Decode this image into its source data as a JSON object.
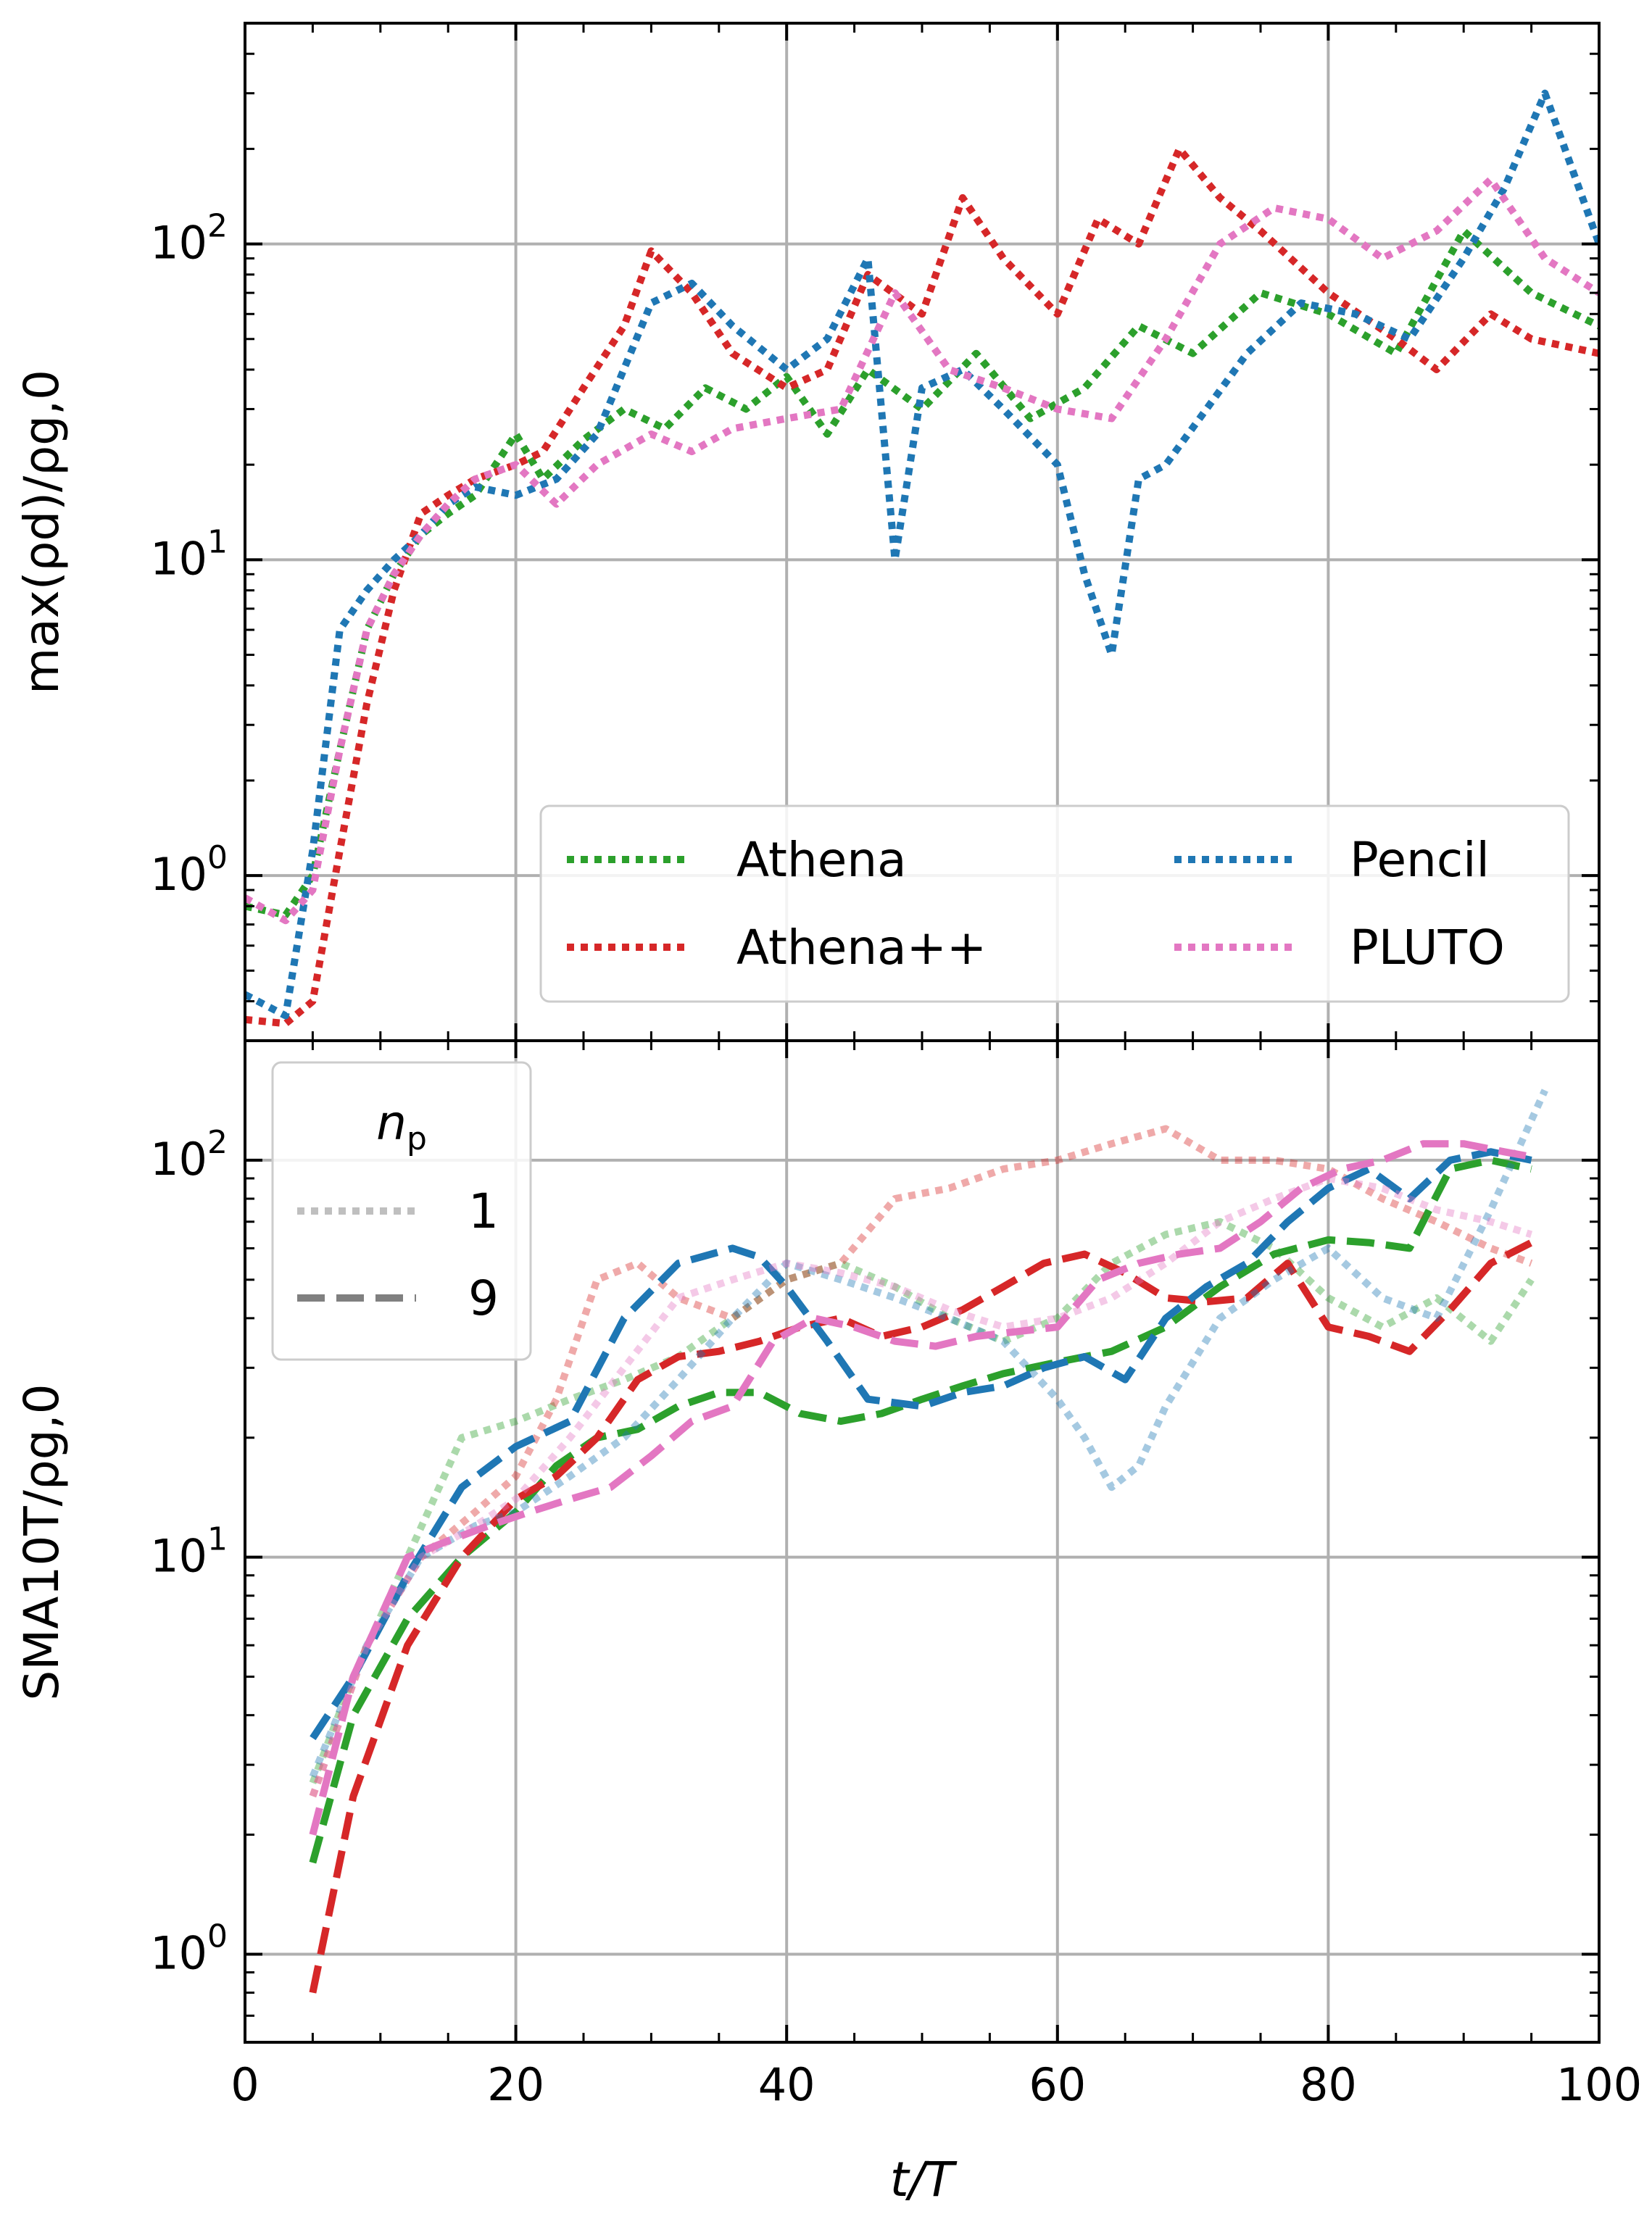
{
  "chart_data": [
    {
      "type": "line",
      "panel": "top",
      "xlabel": "t/T",
      "ylabel": "max(ρd)/ρg,0",
      "xlim": [
        0,
        100
      ],
      "ylim": [
        0.3,
        500
      ],
      "yscale": "log",
      "grid": true,
      "xticks": [
        0,
        20,
        40,
        60,
        80,
        100
      ],
      "yticks": [
        {
          "value": 1,
          "mantissa": "10",
          "exp": "0"
        },
        {
          "value": 10,
          "mantissa": "10",
          "exp": "1"
        },
        {
          "value": 100,
          "mantissa": "10",
          "exp": "2"
        }
      ],
      "legend": {
        "placement": "lower-right",
        "columns": 2
      },
      "series": [
        {
          "name": "Athena",
          "color": "#2ca02c",
          "style": "dotted",
          "x": [
            0,
            3,
            5,
            7,
            9,
            11,
            13,
            15,
            17,
            20,
            22,
            25,
            28,
            31,
            34,
            37,
            40,
            43,
            46,
            50,
            54,
            58,
            62,
            66,
            70,
            75,
            80,
            85,
            90,
            95,
            100
          ],
          "y": [
            0.8,
            0.75,
            1.0,
            2.5,
            6,
            9,
            12,
            14,
            16,
            25,
            18,
            24,
            30,
            26,
            35,
            30,
            38,
            25,
            40,
            30,
            45,
            28,
            35,
            55,
            45,
            70,
            60,
            45,
            110,
            70,
            55
          ]
        },
        {
          "name": "Athena++",
          "color": "#d62728",
          "style": "dotted",
          "x": [
            0,
            3,
            5,
            7,
            9,
            11,
            13,
            15,
            17,
            20,
            22,
            25,
            28,
            30,
            33,
            36,
            40,
            43,
            46,
            50,
            53,
            56,
            60,
            63,
            66,
            69,
            72,
            75,
            80,
            85,
            88,
            92,
            95,
            100
          ],
          "y": [
            0.35,
            0.34,
            0.4,
            1.2,
            3.5,
            8,
            14,
            16,
            18,
            20,
            22,
            35,
            55,
            95,
            70,
            45,
            35,
            40,
            80,
            60,
            140,
            90,
            60,
            120,
            100,
            200,
            140,
            110,
            70,
            50,
            40,
            60,
            50,
            45
          ]
        },
        {
          "name": "Pencil",
          "color": "#1f77b4",
          "style": "dotted",
          "x": [
            0,
            3,
            5,
            7,
            9,
            11,
            13,
            15,
            17,
            20,
            23,
            26,
            30,
            33,
            36,
            40,
            43,
            46,
            48,
            50,
            53,
            56,
            60,
            62,
            64,
            66,
            68,
            71,
            74,
            78,
            82,
            86,
            90,
            93,
            96,
            100
          ],
          "y": [
            0.42,
            0.36,
            1.2,
            6,
            8,
            10,
            12,
            15,
            17,
            16,
            18,
            25,
            65,
            75,
            55,
            40,
            50,
            90,
            10,
            35,
            40,
            30,
            20,
            9,
            5,
            18,
            20,
            30,
            45,
            65,
            60,
            50,
            90,
            150,
            300,
            100
          ]
        },
        {
          "name": "PLUTO",
          "color": "#e377c2",
          "style": "dotted",
          "x": [
            0,
            3,
            5,
            7,
            9,
            11,
            13,
            15,
            17,
            20,
            23,
            26,
            30,
            33,
            36,
            40,
            44,
            48,
            52,
            56,
            60,
            64,
            68,
            72,
            76,
            80,
            84,
            88,
            92,
            96,
            100
          ],
          "y": [
            0.85,
            0.72,
            0.9,
            2.5,
            6,
            9,
            12,
            15,
            18,
            20,
            15,
            20,
            25,
            22,
            26,
            28,
            30,
            70,
            40,
            35,
            30,
            28,
            50,
            100,
            130,
            120,
            90,
            110,
            160,
            90,
            70
          ]
        }
      ]
    },
    {
      "type": "line",
      "panel": "bottom",
      "xlabel": "t/T",
      "ylabel": "SMA10T/ρg,0",
      "xlim": [
        0,
        100
      ],
      "ylim": [
        0.6,
        200
      ],
      "yscale": "log",
      "grid": true,
      "xticks": [
        0,
        20,
        40,
        60,
        80,
        100
      ],
      "yticks": [
        {
          "value": 1,
          "mantissa": "10",
          "exp": "0"
        },
        {
          "value": 10,
          "mantissa": "10",
          "exp": "1"
        },
        {
          "value": 100,
          "mantissa": "10",
          "exp": "2"
        }
      ],
      "legend": {
        "title_base": "n",
        "title_sub": "p",
        "placement": "upper-left",
        "entries": [
          {
            "label": "1",
            "style": "dotted"
          },
          {
            "label": "9",
            "style": "dashed"
          }
        ]
      },
      "series": [
        {
          "name": "Athena",
          "np": "1",
          "color": "#2ca02c",
          "style": "dotted",
          "x": [
            5,
            8,
            12,
            16,
            20,
            24,
            28,
            32,
            36,
            40,
            44,
            48,
            52,
            56,
            60,
            64,
            68,
            72,
            76,
            80,
            84,
            88,
            92,
            95
          ],
          "y": [
            2.7,
            5,
            10,
            20,
            22,
            25,
            28,
            32,
            40,
            50,
            55,
            48,
            40,
            35,
            40,
            55,
            65,
            70,
            60,
            45,
            38,
            45,
            35,
            50
          ]
        },
        {
          "name": "Athena",
          "np": "9",
          "color": "#2ca02c",
          "style": "dashed",
          "x": [
            5,
            8,
            12,
            16,
            20,
            23,
            26,
            29,
            32,
            35,
            38,
            41,
            44,
            47,
            50,
            53,
            56,
            60,
            64,
            68,
            72,
            76,
            80,
            83,
            86,
            89,
            92,
            95
          ],
          "y": [
            1.7,
            4,
            7,
            10,
            13,
            17,
            20,
            21,
            24,
            26,
            26,
            23,
            22,
            23,
            25,
            27,
            29,
            31,
            33,
            38,
            48,
            58,
            63,
            62,
            60,
            95,
            100,
            95
          ]
        },
        {
          "name": "Athena++",
          "np": "1",
          "color": "#d62728",
          "style": "dotted",
          "x": [
            5,
            9,
            13,
            17,
            20,
            23,
            26,
            29,
            32,
            36,
            40,
            44,
            48,
            52,
            56,
            60,
            64,
            68,
            72,
            76,
            80,
            84,
            88,
            92,
            95
          ],
          "y": [
            2.5,
            6,
            10,
            13,
            16,
            25,
            50,
            55,
            45,
            40,
            50,
            55,
            80,
            85,
            95,
            100,
            110,
            120,
            100,
            100,
            95,
            80,
            70,
            60,
            55
          ]
        },
        {
          "name": "Athena++",
          "np": "9",
          "color": "#d62728",
          "style": "dashed",
          "x": [
            5,
            8,
            12,
            16,
            20,
            23,
            26,
            29,
            32,
            35,
            38,
            41,
            44,
            47,
            50,
            53,
            56,
            59,
            62,
            65,
            68,
            71,
            74,
            77,
            80,
            83,
            86,
            89,
            92,
            95
          ],
          "y": [
            0.8,
            2.5,
            6,
            10,
            14,
            16,
            20,
            28,
            32,
            33,
            35,
            38,
            40,
            36,
            38,
            42,
            48,
            55,
            58,
            52,
            45,
            44,
            45,
            55,
            38,
            36,
            33,
            42,
            55,
            62
          ]
        },
        {
          "name": "Pencil",
          "np": "1",
          "color": "#1f77b4",
          "style": "dotted",
          "x": [
            5,
            9,
            13,
            17,
            20,
            24,
            28,
            32,
            36,
            40,
            44,
            48,
            52,
            56,
            60,
            62,
            64,
            66,
            68,
            72,
            76,
            80,
            84,
            88,
            92,
            96
          ],
          "y": [
            2.8,
            6,
            10,
            12,
            13,
            16,
            20,
            28,
            40,
            55,
            50,
            45,
            40,
            35,
            25,
            20,
            15,
            17,
            24,
            40,
            50,
            60,
            45,
            40,
            75,
            150
          ]
        },
        {
          "name": "Pencil",
          "np": "9",
          "color": "#1f77b4",
          "style": "dashed",
          "x": [
            5,
            8,
            12,
            16,
            20,
            24,
            28,
            32,
            36,
            38,
            40,
            43,
            46,
            50,
            53,
            56,
            59,
            62,
            65,
            68,
            71,
            74,
            77,
            80,
            83,
            86,
            89,
            92,
            95
          ],
          "y": [
            3.5,
            5,
            9,
            15,
            19,
            22,
            40,
            55,
            60,
            57,
            48,
            35,
            25,
            24,
            26,
            27,
            30,
            32,
            28,
            40,
            48,
            55,
            70,
            85,
            95,
            80,
            100,
            105,
            100
          ]
        },
        {
          "name": "PLUTO",
          "np": "1",
          "color": "#e377c2",
          "style": "dotted",
          "x": [
            5,
            9,
            13,
            17,
            20,
            24,
            28,
            32,
            36,
            40,
            44,
            48,
            52,
            56,
            60,
            64,
            68,
            72,
            76,
            80,
            84,
            88,
            92,
            95
          ],
          "y": [
            2.5,
            6,
            10,
            12,
            14,
            20,
            30,
            45,
            50,
            55,
            52,
            48,
            42,
            38,
            40,
            45,
            55,
            70,
            80,
            90,
            85,
            75,
            70,
            65
          ]
        },
        {
          "name": "PLUTO",
          "np": "9",
          "color": "#e377c2",
          "style": "dashed",
          "x": [
            5,
            8,
            12,
            15,
            18,
            21,
            24,
            27,
            30,
            33,
            36,
            39,
            42,
            45,
            48,
            51,
            54,
            57,
            60,
            63,
            66,
            69,
            72,
            75,
            78,
            81,
            84,
            87,
            90,
            93,
            95
          ],
          "y": [
            2,
            5,
            10,
            11,
            12,
            13,
            14,
            15,
            18,
            22,
            24,
            35,
            40,
            38,
            35,
            34,
            36,
            37,
            38,
            50,
            55,
            58,
            60,
            70,
            85,
            95,
            100,
            110,
            110,
            105,
            102
          ]
        }
      ]
    }
  ]
}
